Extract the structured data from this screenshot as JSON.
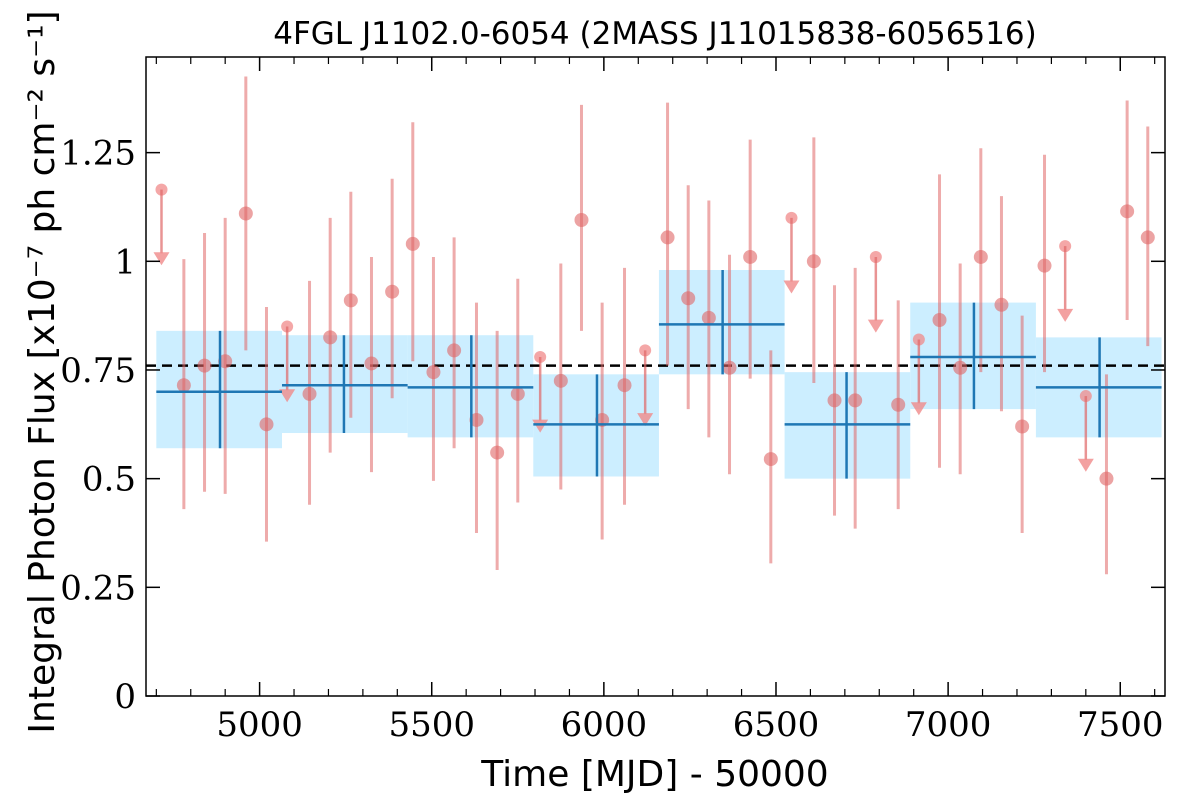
{
  "chart_data": {
    "type": "scatter",
    "title": "4FGL J1102.0-6054 (2MASS J11015838-6056516)",
    "xlabel": "Time [MJD] - 50000",
    "ylabel": "Integral Photon Flux [x10⁻⁷ ph cm⁻² s⁻¹]",
    "xlim": [
      4670,
      7630
    ],
    "ylim": [
      0,
      1.47
    ],
    "x_ticks": [
      5000,
      5500,
      6000,
      6500,
      7000,
      7500
    ],
    "x_tick_labels": [
      "5000",
      "5500",
      "6000",
      "6500",
      "7000",
      "7500"
    ],
    "y_ticks": [
      0,
      0.25,
      0.5,
      0.75,
      1.0,
      1.25
    ],
    "y_tick_labels": [
      "0",
      "0.25",
      "0.5",
      "0.75",
      "1",
      "1.25"
    ],
    "grid": false,
    "legend": "none",
    "colors": {
      "points": "#e06666",
      "upper_limits": "#f08a8a",
      "bins": "#1f77b4",
      "bin_band": "#cceeff",
      "mean_line": "#000000"
    },
    "mean_flux": 0.76,
    "measurements": [
      {
        "x": 4780,
        "y": 0.715,
        "lo": 0.43,
        "hi": 1.005
      },
      {
        "x": 4840,
        "y": 0.76,
        "lo": 0.47,
        "hi": 1.065
      },
      {
        "x": 4900,
        "y": 0.77,
        "lo": 0.465,
        "hi": 1.1
      },
      {
        "x": 4960,
        "y": 1.11,
        "lo": 0.795,
        "hi": 1.425
      },
      {
        "x": 5020,
        "y": 0.625,
        "lo": 0.355,
        "hi": 0.895
      },
      {
        "x": 5145,
        "y": 0.695,
        "lo": 0.44,
        "hi": 0.955
      },
      {
        "x": 5205,
        "y": 0.825,
        "lo": 0.56,
        "hi": 1.1
      },
      {
        "x": 5265,
        "y": 0.91,
        "lo": 0.64,
        "hi": 1.16
      },
      {
        "x": 5325,
        "y": 0.765,
        "lo": 0.515,
        "hi": 1.01
      },
      {
        "x": 5385,
        "y": 0.93,
        "lo": 0.685,
        "hi": 1.19
      },
      {
        "x": 5445,
        "y": 1.04,
        "lo": 0.77,
        "hi": 1.32
      },
      {
        "x": 5505,
        "y": 0.745,
        "lo": 0.495,
        "hi": 1.01
      },
      {
        "x": 5565,
        "y": 0.795,
        "lo": 0.57,
        "hi": 1.055
      },
      {
        "x": 5630,
        "y": 0.635,
        "lo": 0.375,
        "hi": 0.905
      },
      {
        "x": 5690,
        "y": 0.56,
        "lo": 0.29,
        "hi": 0.84
      },
      {
        "x": 5750,
        "y": 0.695,
        "lo": 0.445,
        "hi": 0.96
      },
      {
        "x": 5875,
        "y": 0.725,
        "lo": 0.475,
        "hi": 0.995
      },
      {
        "x": 5935,
        "y": 1.095,
        "lo": 0.84,
        "hi": 1.36
      },
      {
        "x": 5995,
        "y": 0.635,
        "lo": 0.36,
        "hi": 0.905
      },
      {
        "x": 6060,
        "y": 0.715,
        "lo": 0.44,
        "hi": 0.985
      },
      {
        "x": 6185,
        "y": 1.055,
        "lo": 0.76,
        "hi": 1.365
      },
      {
        "x": 6245,
        "y": 0.915,
        "lo": 0.66,
        "hi": 1.175
      },
      {
        "x": 6305,
        "y": 0.87,
        "lo": 0.595,
        "hi": 1.14
      },
      {
        "x": 6365,
        "y": 0.755,
        "lo": 0.51,
        "hi": 1.015
      },
      {
        "x": 6425,
        "y": 1.01,
        "lo": 0.73,
        "hi": 1.28
      },
      {
        "x": 6485,
        "y": 0.545,
        "lo": 0.305,
        "hi": 0.795
      },
      {
        "x": 6610,
        "y": 1.0,
        "lo": 0.72,
        "hi": 1.285
      },
      {
        "x": 6670,
        "y": 0.68,
        "lo": 0.415,
        "hi": 0.945
      },
      {
        "x": 6730,
        "y": 0.68,
        "lo": 0.385,
        "hi": 0.985
      },
      {
        "x": 6855,
        "y": 0.67,
        "lo": 0.43,
        "hi": 0.91
      },
      {
        "x": 6975,
        "y": 0.865,
        "lo": 0.525,
        "hi": 1.2
      },
      {
        "x": 7035,
        "y": 0.755,
        "lo": 0.51,
        "hi": 0.995
      },
      {
        "x": 7095,
        "y": 1.01,
        "lo": 0.745,
        "hi": 1.26
      },
      {
        "x": 7155,
        "y": 0.9,
        "lo": 0.655,
        "hi": 1.15
      },
      {
        "x": 7215,
        "y": 0.62,
        "lo": 0.375,
        "hi": 0.875
      },
      {
        "x": 7280,
        "y": 0.99,
        "lo": 0.745,
        "hi": 1.245
      },
      {
        "x": 7460,
        "y": 0.5,
        "lo": 0.28,
        "hi": 0.74
      },
      {
        "x": 7520,
        "y": 1.115,
        "lo": 0.865,
        "hi": 1.37
      },
      {
        "x": 7580,
        "y": 1.055,
        "lo": 0.805,
        "hi": 1.31
      }
    ],
    "upper_limits": [
      {
        "x": 4715,
        "y": 1.165,
        "arrow_to": 1.0
      },
      {
        "x": 5080,
        "y": 0.85,
        "arrow_to": 0.685
      },
      {
        "x": 5815,
        "y": 0.78,
        "arrow_to": 0.615
      },
      {
        "x": 6120,
        "y": 0.795,
        "arrow_to": 0.63
      },
      {
        "x": 6545,
        "y": 1.1,
        "arrow_to": 0.935
      },
      {
        "x": 6790,
        "y": 1.01,
        "arrow_to": 0.845
      },
      {
        "x": 6915,
        "y": 0.82,
        "arrow_to": 0.655
      },
      {
        "x": 7340,
        "y": 1.035,
        "arrow_to": 0.87
      },
      {
        "x": 7400,
        "y": 0.69,
        "arrow_to": 0.525
      }
    ],
    "bins": [
      {
        "x_start": 4700,
        "x_end": 5065,
        "x_center": 4885,
        "y": 0.7,
        "y_lo": 0.57,
        "y_hi": 0.84
      },
      {
        "x_start": 5065,
        "x_end": 5430,
        "x_center": 5245,
        "y": 0.715,
        "y_lo": 0.605,
        "y_hi": 0.83
      },
      {
        "x_start": 5430,
        "x_end": 5795,
        "x_center": 5615,
        "y": 0.71,
        "y_lo": 0.595,
        "y_hi": 0.83
      },
      {
        "x_start": 5795,
        "x_end": 6160,
        "x_center": 5980,
        "y": 0.625,
        "y_lo": 0.505,
        "y_hi": 0.74
      },
      {
        "x_start": 6160,
        "x_end": 6525,
        "x_center": 6345,
        "y": 0.855,
        "y_lo": 0.74,
        "y_hi": 0.98
      },
      {
        "x_start": 6525,
        "x_end": 6890,
        "x_center": 6705,
        "y": 0.625,
        "y_lo": 0.5,
        "y_hi": 0.745
      },
      {
        "x_start": 6890,
        "x_end": 7255,
        "x_center": 7075,
        "y": 0.78,
        "y_lo": 0.66,
        "y_hi": 0.905
      },
      {
        "x_start": 7255,
        "x_end": 7620,
        "x_center": 7440,
        "y": 0.71,
        "y_lo": 0.595,
        "y_hi": 0.825
      }
    ]
  }
}
